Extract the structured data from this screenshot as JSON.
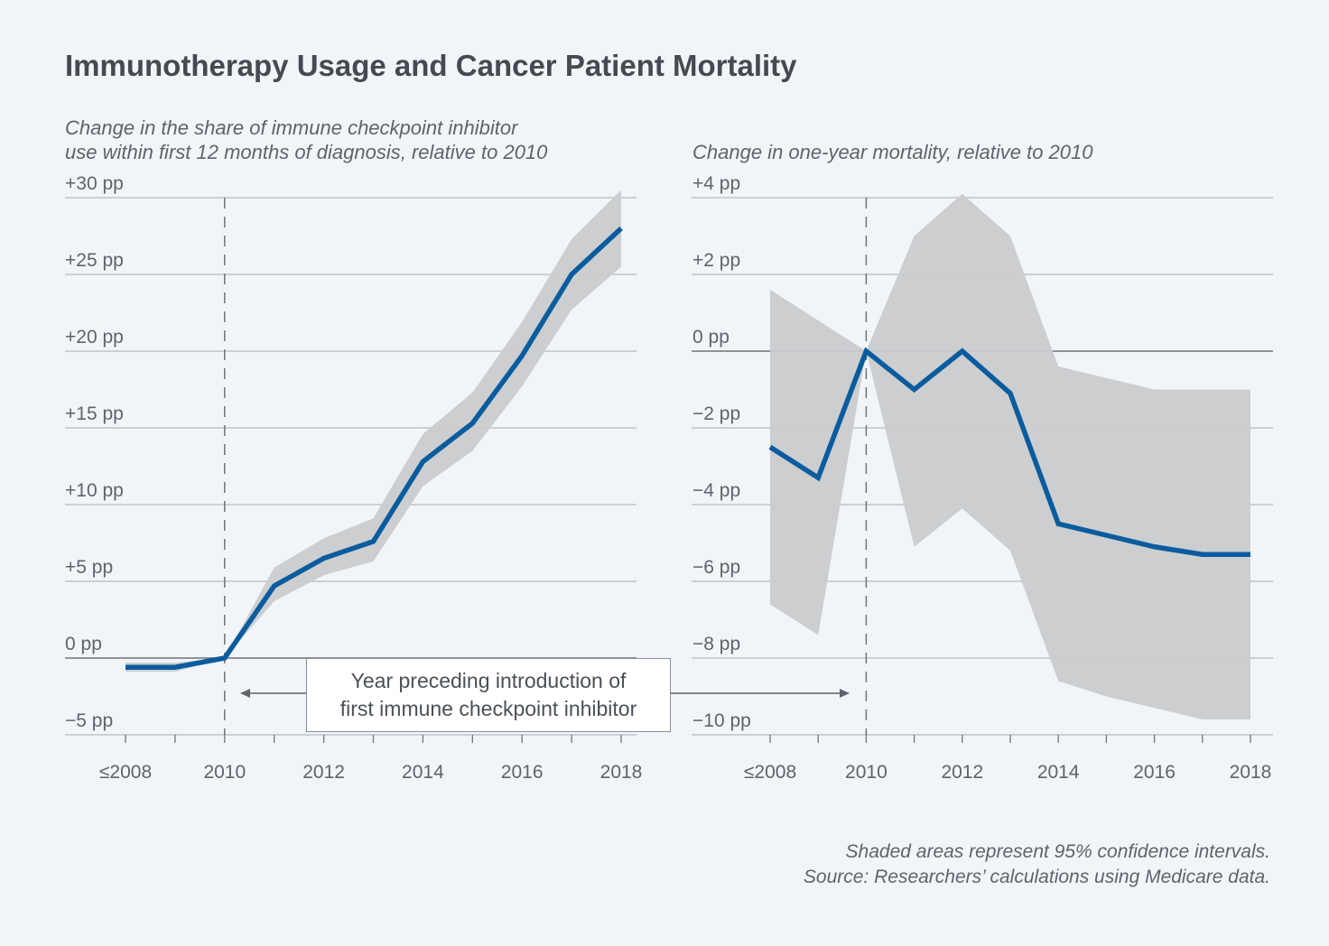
{
  "title": "Immunotherapy Usage and Cancer Patient Mortality",
  "footnotes": {
    "line1": "Shaded areas represent 95% confidence intervals.",
    "line2": "Source: Researchers’ calculations using Medicare data."
  },
  "annotation": {
    "line1": "Year preceding introduction of",
    "line2": "first immune checkpoint inhibitor"
  },
  "colors": {
    "line": "#0b5c9e",
    "band": "#c9cbce",
    "grid": "#b6babe",
    "zero": "#6f7478",
    "dashed": "#6f7478",
    "background": "#f1f5f9"
  },
  "chart_data": [
    {
      "type": "line",
      "subtitle_line1": "Change in the share of immune checkpoint inhibitor",
      "subtitle_line2": "use within first 12 months of diagnosis, relative to 2010",
      "x": [
        2008,
        2009,
        2010,
        2011,
        2012,
        2013,
        2014,
        2015,
        2016,
        2017,
        2018
      ],
      "xticks": [
        2008,
        2010,
        2012,
        2014,
        2016,
        2018
      ],
      "xtick_labels": [
        "≤2008",
        "2010",
        "2012",
        "2014",
        "2016",
        "2018"
      ],
      "ylim": [
        -5,
        30
      ],
      "yticks": [
        -5,
        0,
        5,
        10,
        15,
        20,
        25,
        30
      ],
      "ytick_labels": [
        "−5 pp",
        "0 pp",
        "+5 pp",
        "+10 pp",
        "+15 pp",
        "+20 pp",
        "+25 pp",
        "+30 pp"
      ],
      "series": [
        {
          "values": [
            -0.6,
            -0.6,
            0,
            4.7,
            6.5,
            7.6,
            12.8,
            15.3,
            19.7,
            25.0,
            28.0
          ],
          "ci_low": [
            -0.9,
            -0.9,
            0,
            3.7,
            5.4,
            6.3,
            11.2,
            13.5,
            17.7,
            22.7,
            25.5
          ],
          "ci_high": [
            -0.3,
            -0.3,
            0,
            5.9,
            7.8,
            9.1,
            14.6,
            17.3,
            21.9,
            27.3,
            30.5
          ]
        }
      ],
      "reference_x": 2010,
      "grid": true
    },
    {
      "type": "line",
      "subtitle_line1": "",
      "subtitle_line2": "Change in one-year mortality, relative to 2010",
      "x": [
        2008,
        2009,
        2010,
        2011,
        2012,
        2013,
        2014,
        2015,
        2016,
        2017,
        2018
      ],
      "xticks": [
        2008,
        2010,
        2012,
        2014,
        2016,
        2018
      ],
      "xtick_labels": [
        "≤2008",
        "2010",
        "2012",
        "2014",
        "2016",
        "2018"
      ],
      "ylim": [
        -10,
        4
      ],
      "yticks": [
        -10,
        -8,
        -6,
        -4,
        -2,
        0,
        2,
        4
      ],
      "ytick_labels": [
        "−10 pp",
        "−8 pp",
        "−6 pp",
        "−4 pp",
        "−2 pp",
        "0 pp",
        "+2 pp",
        "+4 pp"
      ],
      "series": [
        {
          "values": [
            -2.5,
            -3.3,
            0,
            -1.0,
            0,
            -1.1,
            -4.5,
            -4.8,
            -5.1,
            -5.3,
            -5.3
          ],
          "ci_low": [
            -6.6,
            -7.4,
            0,
            -5.1,
            -4.1,
            -5.2,
            -8.6,
            -9.0,
            -9.3,
            -9.6,
            -9.6
          ],
          "ci_high": [
            1.6,
            0.8,
            0,
            3.0,
            4.1,
            3.0,
            -0.4,
            -0.7,
            -1.0,
            -1.0,
            -1.0
          ]
        }
      ],
      "reference_x": 2010,
      "grid": true
    }
  ]
}
